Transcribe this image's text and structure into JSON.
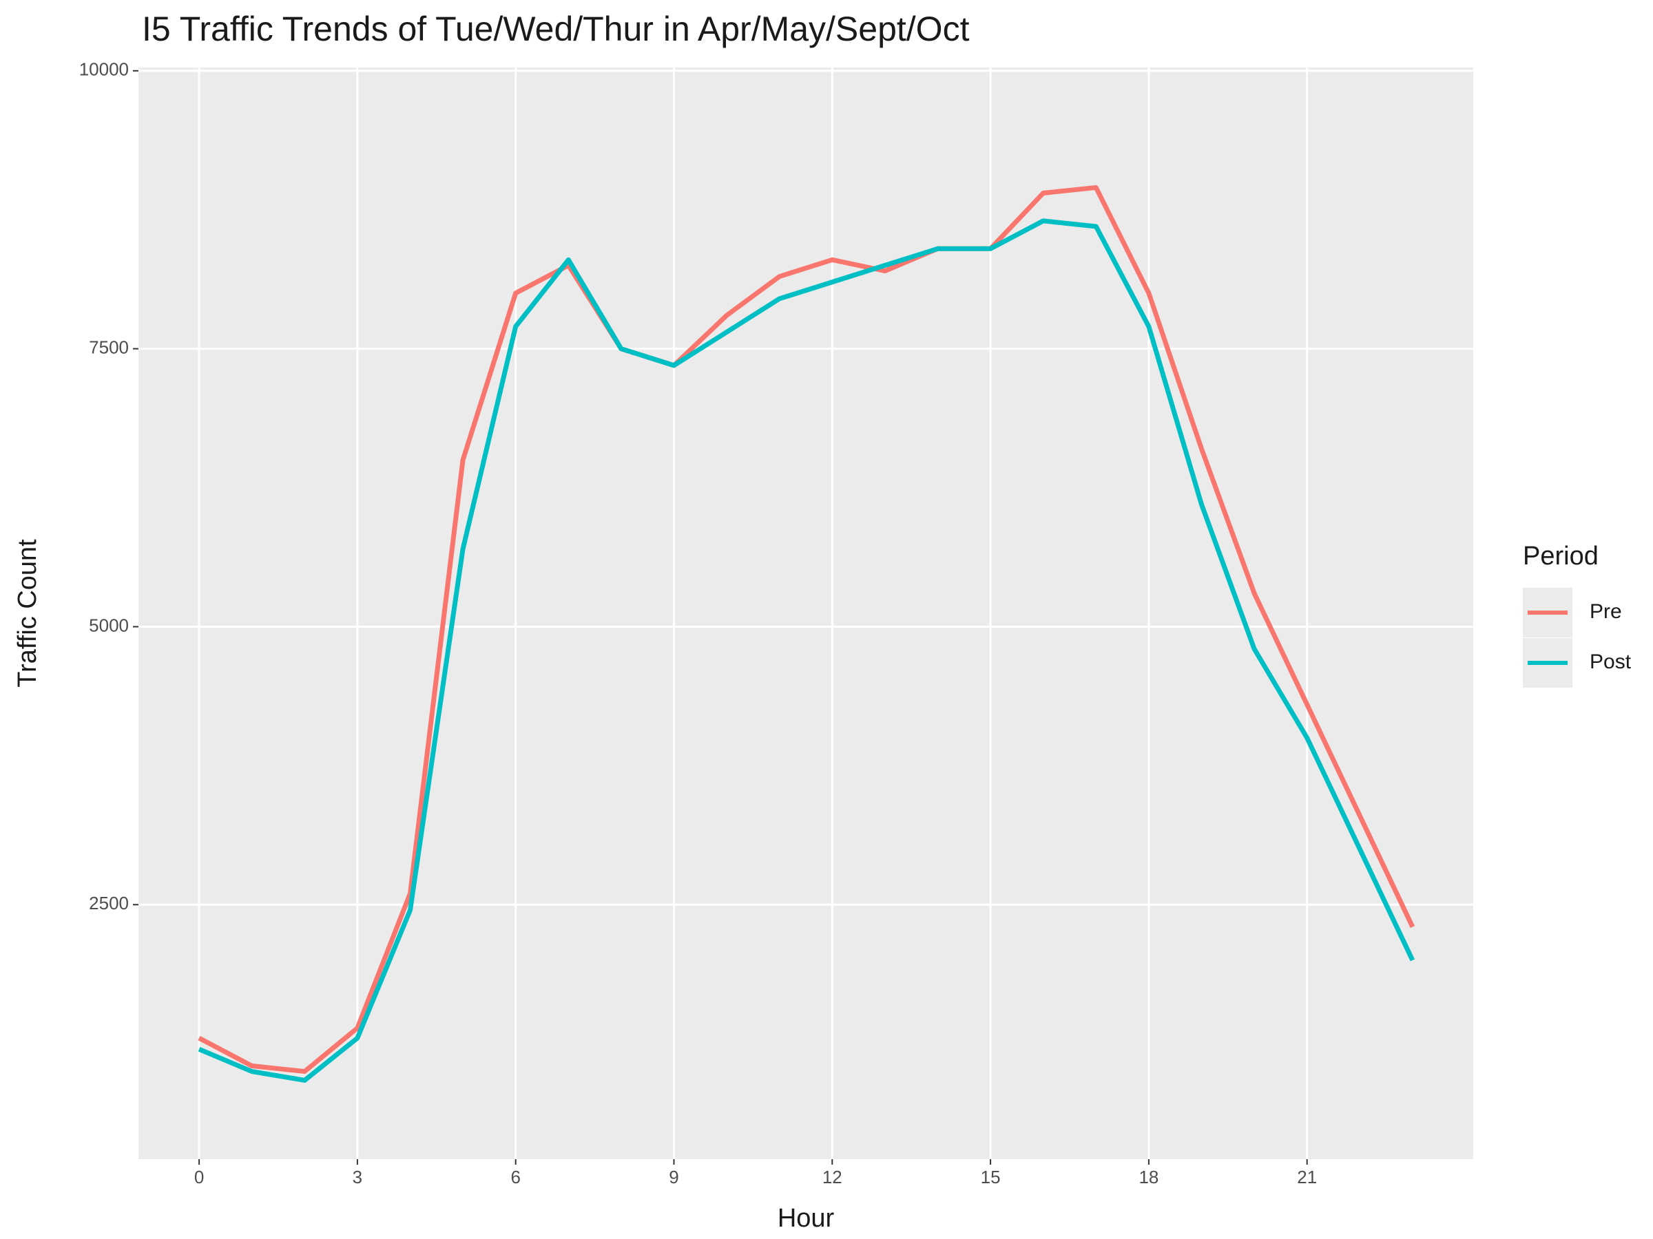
{
  "chart_data": {
    "type": "line",
    "title": "I5 Traffic Trends of Tue/Wed/Thur in Apr/May/Sept/Oct",
    "x_label": "Hour",
    "y_label": "Traffic Count",
    "legend_title": "Period",
    "legend_position": "right",
    "grid": true,
    "x": [
      0,
      1,
      2,
      3,
      4,
      5,
      6,
      7,
      8,
      9,
      10,
      11,
      12,
      13,
      14,
      15,
      16,
      17,
      18,
      19,
      20,
      21,
      22,
      23
    ],
    "series": [
      {
        "name": "Pre",
        "color": "#F8766D",
        "values": [
          1300,
          1050,
          1000,
          1390,
          2600,
          6500,
          8000,
          8250,
          7500,
          7350,
          7800,
          8150,
          8300,
          8200,
          8400,
          8400,
          8900,
          8950,
          8000,
          6600,
          5300,
          4300,
          3300,
          2300
        ]
      },
      {
        "name": "Post",
        "color": "#00BFC4",
        "values": [
          1200,
          1000,
          920,
          1300,
          2450,
          5700,
          7700,
          8300,
          7500,
          7350,
          7650,
          7950,
          8100,
          8250,
          8400,
          8400,
          8650,
          8600,
          7700,
          6100,
          4800,
          4000,
          3000,
          2000
        ]
      }
    ],
    "xlim": [
      -1.15,
      24.15
    ],
    "xticks": [
      0,
      3,
      6,
      9,
      12,
      15,
      18,
      21
    ],
    "ylim": [
      211,
      10030
    ],
    "yticks": [
      2500,
      5000,
      7500,
      10000
    ]
  }
}
